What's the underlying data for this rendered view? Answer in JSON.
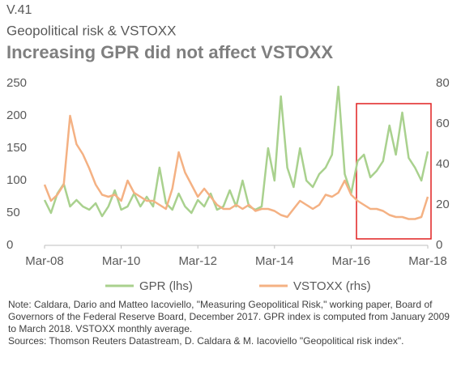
{
  "chart_data": {
    "type": "line",
    "label": "V.41",
    "subtitle": "Geopolitical risk & VSTOXX",
    "title": "Increasing GPR did not affect VSTOXX",
    "categories": [
      "Mar-08",
      null,
      null,
      null,
      null,
      null,
      null,
      null,
      null,
      null,
      null,
      null,
      "Mar-10",
      null,
      null,
      null,
      null,
      null,
      null,
      null,
      null,
      null,
      null,
      null,
      "Mar-12",
      null,
      null,
      null,
      null,
      null,
      null,
      null,
      null,
      null,
      null,
      null,
      "Mar-14",
      null,
      null,
      null,
      null,
      null,
      null,
      null,
      null,
      null,
      null,
      null,
      "Mar-16",
      null,
      null,
      null,
      null,
      null,
      null,
      null,
      null,
      null,
      null,
      null,
      "Mar-18"
    ],
    "series": [
      {
        "name": "GPR (lhs)",
        "color": "#a9d18e",
        "values": [
          70,
          50,
          80,
          95,
          60,
          70,
          60,
          55,
          65,
          45,
          60,
          85,
          55,
          60,
          80,
          60,
          75,
          60,
          120,
          65,
          55,
          80,
          60,
          50,
          70,
          60,
          80,
          55,
          60,
          85,
          60,
          100,
          60,
          55,
          60,
          150,
          100,
          230,
          120,
          90,
          150,
          100,
          90,
          110,
          120,
          140,
          245,
          110,
          80,
          130,
          140,
          105,
          115,
          130,
          185,
          140,
          205,
          135,
          120,
          100,
          145
        ]
      },
      {
        "name": "VSTOXX (rhs)",
        "color": "#f4b183",
        "axis": "y2",
        "values": [
          30,
          22,
          25,
          30,
          64,
          50,
          45,
          38,
          30,
          25,
          24,
          25,
          22,
          32,
          26,
          24,
          22,
          22,
          20,
          18,
          28,
          46,
          36,
          30,
          24,
          28,
          24,
          20,
          18,
          18,
          20,
          18,
          20,
          17,
          18,
          18,
          17,
          15,
          14,
          18,
          22,
          20,
          18,
          20,
          25,
          24,
          26,
          32,
          25,
          22,
          20,
          18,
          18,
          17,
          15,
          14,
          14,
          13,
          13,
          14,
          24
        ]
      }
    ],
    "ylim": [
      0,
      250
    ],
    "yticks": [
      0,
      50,
      100,
      150,
      200,
      250
    ],
    "y2lim": [
      0,
      80
    ],
    "y2ticks": [
      0,
      20,
      40,
      60,
      80
    ],
    "note": "Note: Caldara, Dario and Matteo Iacoviello, \"Measuring Geopolitical Risk,\" working paper, Board of Governors of the Federal Reserve Board, December 2017. GPR index is computed from January 2009 to March 2018. VSTOXX monthly average.",
    "sources": "Sources: Thomson Reuters Datastream, D. Caldara & M. Iacoviello \"Geopolitical risk index\"."
  }
}
